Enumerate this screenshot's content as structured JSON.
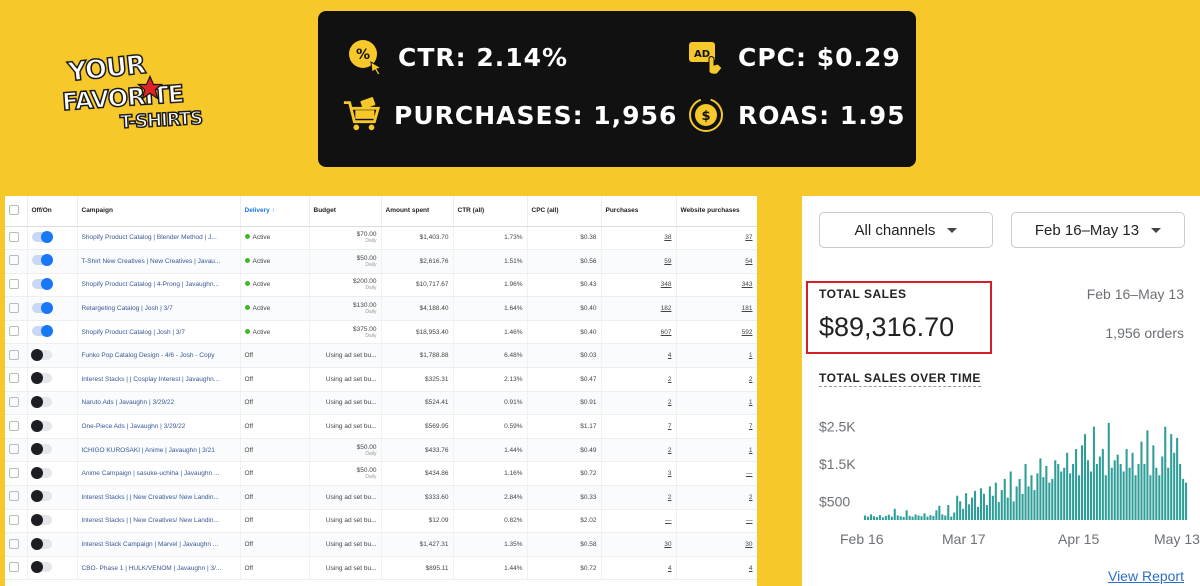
{
  "logo": {
    "word1": "YOUR",
    "word2": "FAVORITE",
    "word3": "T-SHIRTS"
  },
  "stats": {
    "ctr": "CTR: 2.14%",
    "cpc": "CPC: $0.29",
    "purchases": "PURCHASES: 1,956",
    "roas": "ROAS: 1.95"
  },
  "ads_table": {
    "headers": [
      "Off/On",
      "Campaign",
      "Delivery ↑",
      "Budget",
      "Amount spent",
      "CTR (all)",
      "CPC (all)",
      "Purchases",
      "Website purchases"
    ],
    "rows": [
      {
        "on": true,
        "campaign": "Shopify Product Catalog | Blender Method | J...",
        "delivery": "Active",
        "budget": "$70.00",
        "budget_sub": "Daily",
        "spent": "$1,403.70",
        "ctr": "1.73%",
        "cpc": "$0.38",
        "purchases": "38",
        "website": "37"
      },
      {
        "on": true,
        "campaign": "T-Shirt New Creatives | New Creatives | Javau...",
        "delivery": "Active",
        "budget": "$50.00",
        "budget_sub": "Daily",
        "spent": "$2,616.76",
        "ctr": "1.51%",
        "cpc": "$0.56",
        "purchases": "59",
        "website": "54"
      },
      {
        "on": true,
        "campaign": "Shopify Product Catalog | 4-Prong | Javaughn...",
        "delivery": "Active",
        "budget": "$200.00",
        "budget_sub": "Daily",
        "spent": "$10,717.67",
        "ctr": "1.96%",
        "cpc": "$0.43",
        "purchases": "348",
        "website": "343"
      },
      {
        "on": true,
        "campaign": "Retargeting Catalog | Josh | 3/7",
        "delivery": "Active",
        "budget": "$130.00",
        "budget_sub": "Daily",
        "spent": "$4,188.40",
        "ctr": "1.64%",
        "cpc": "$0.40",
        "purchases": "182",
        "website": "181"
      },
      {
        "on": true,
        "campaign": "Shopify Product Catalog | Josh | 3/7",
        "delivery": "Active",
        "budget": "$375.00",
        "budget_sub": "Daily",
        "spent": "$18,953.40",
        "ctr": "1.46%",
        "cpc": "$0.40",
        "purchases": "607",
        "website": "592"
      },
      {
        "on": false,
        "campaign": "Funko Pop Catalog Design - 4/6 - Josh - Copy",
        "delivery": "Off",
        "budget": "Using ad set bu...",
        "budget_sub": "",
        "spent": "$1,788.88",
        "ctr": "6.48%",
        "cpc": "$0.03",
        "purchases": "4",
        "website": "1"
      },
      {
        "on": false,
        "campaign": "Interest Stacks | | Cosplay Interest | Javaughn...",
        "delivery": "Off",
        "budget": "Using ad set bu...",
        "budget_sub": "",
        "spent": "$325.31",
        "ctr": "2.13%",
        "cpc": "$0.47",
        "purchases": "2",
        "website": "2"
      },
      {
        "on": false,
        "campaign": "Naruto Ads | Javaughn | 3/29/22",
        "delivery": "Off",
        "budget": "Using ad set bu...",
        "budget_sub": "",
        "spent": "$524.41",
        "ctr": "0.91%",
        "cpc": "$0.91",
        "purchases": "2",
        "website": "1"
      },
      {
        "on": false,
        "campaign": "One-Piece Ads | Javaughn | 3/29/22",
        "delivery": "Off",
        "budget": "Using ad set bu...",
        "budget_sub": "",
        "spent": "$569.95",
        "ctr": "0.59%",
        "cpc": "$1.17",
        "purchases": "7",
        "website": "7"
      },
      {
        "on": false,
        "campaign": "ICHIGO KUROSAKI | Anime | Javaughn | 3/21",
        "delivery": "Off",
        "budget": "$50.00",
        "budget_sub": "Daily",
        "spent": "$433.76",
        "ctr": "1.44%",
        "cpc": "$0.49",
        "purchases": "2",
        "website": "1"
      },
      {
        "on": false,
        "campaign": "Anime Campaign | sasuke-uchiha | Javaughn ...",
        "delivery": "Off",
        "budget": "$50.00",
        "budget_sub": "Daily",
        "spent": "$434.86",
        "ctr": "1.16%",
        "cpc": "$0.72",
        "purchases": "3",
        "website": "—"
      },
      {
        "on": false,
        "campaign": "Interest Stacks | | New Creatives/ New Landin...",
        "delivery": "Off",
        "budget": "Using ad set bu...",
        "budget_sub": "",
        "spent": "$333.60",
        "ctr": "2.84%",
        "cpc": "$0.33",
        "purchases": "2",
        "website": "2"
      },
      {
        "on": false,
        "campaign": "Interest Stacks | | New Creatives/ New Landin...",
        "delivery": "Off",
        "budget": "Using ad set bu...",
        "budget_sub": "",
        "spent": "$12.09",
        "ctr": "0.82%",
        "cpc": "$2.02",
        "purchases": "—",
        "website": "—"
      },
      {
        "on": false,
        "campaign": "Interest Stack Campaign | Marvel | Javaughn ...",
        "delivery": "Off",
        "budget": "Using ad set bu...",
        "budget_sub": "",
        "spent": "$1,427.31",
        "ctr": "1.35%",
        "cpc": "$0.58",
        "purchases": "30",
        "website": "30"
      },
      {
        "on": false,
        "campaign": "CBO- Phase 1 | HULK/VENOM | Javaughn | 3/...",
        "delivery": "Off",
        "budget": "Using ad set bu...",
        "budget_sub": "",
        "spent": "$895.11",
        "ctr": "1.44%",
        "cpc": "$0.72",
        "purchases": "4",
        "website": "4"
      }
    ]
  },
  "shopify": {
    "channel_select": "All channels",
    "date_select": "Feb 16–May 13",
    "total_sales_label": "TOTAL SALES",
    "total_sales_value": "$89,316.70",
    "date_range": "Feb 16–May 13",
    "orders": "1,956 orders",
    "over_time_label": "TOTAL SALES OVER TIME",
    "view_report": "View Report",
    "accent": "#2f9e98"
  },
  "chart_data": {
    "type": "bar",
    "title": "TOTAL SALES OVER TIME",
    "ytick_labels": [
      "$2.5K",
      "$1.5K",
      "$500"
    ],
    "yticks": [
      2500,
      1500,
      500
    ],
    "xtick_labels": [
      "Feb 16",
      "Mar 17",
      "Apr 15",
      "May 13"
    ],
    "ylim": [
      0,
      3000
    ],
    "values": [
      120,
      90,
      150,
      100,
      80,
      130,
      70,
      110,
      140,
      90,
      300,
      120,
      100,
      80,
      260,
      110,
      90,
      150,
      120,
      100,
      180,
      90,
      130,
      110,
      260,
      380,
      150,
      120,
      400,
      90,
      200,
      650,
      500,
      300,
      720,
      420,
      600,
      780,
      350,
      850,
      700,
      400,
      900,
      650,
      1000,
      480,
      800,
      1100,
      600,
      1300,
      500,
      900,
      1100,
      700,
      1500,
      900,
      1200,
      800,
      1250,
      1650,
      1150,
      1450,
      1000,
      1100,
      1600,
      1500,
      1300,
      1400,
      1800,
      1250,
      1500,
      1900,
      1200,
      2000,
      2300,
      1600,
      1300,
      2500,
      1500,
      1700,
      1900,
      1200,
      2600,
      1400,
      1600,
      1750,
      1500,
      1300,
      1900,
      1400,
      1800,
      1200,
      1500,
      2100,
      1500,
      2400,
      1200,
      2000,
      1400,
      1200,
      1700,
      2500,
      1400,
      2300,
      1800,
      2200,
      1500,
      1100,
      1000
    ]
  }
}
